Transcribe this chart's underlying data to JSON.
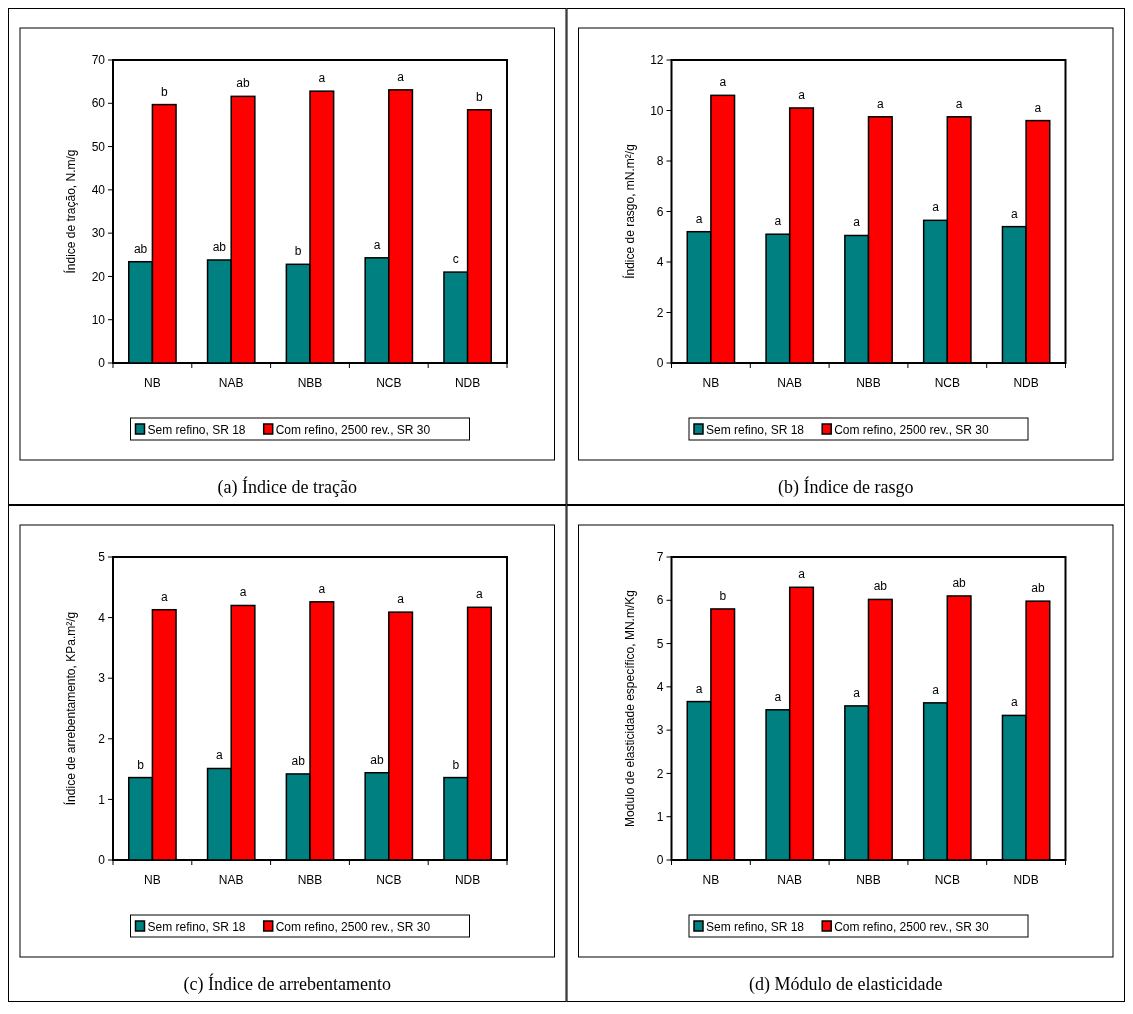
{
  "chart_data": [
    {
      "type": "bar",
      "title": "(a) Índice de tração",
      "ylabel": "Índice de tração, N.m/g",
      "categories": [
        "NB",
        "NAB",
        "NBB",
        "NCB",
        "NDB"
      ],
      "ylim": [
        0,
        70
      ],
      "yticks": [
        0,
        10,
        20,
        30,
        40,
        50,
        60,
        70
      ],
      "grid": false,
      "legend": "bottom",
      "series": [
        {
          "name": "Sem refino, SR 18",
          "color": "#008080",
          "values": [
            23.4,
            23.8,
            22.8,
            24.3,
            21.0
          ],
          "value_labels": [
            "ab",
            "ab",
            "b",
            "a",
            "c"
          ]
        },
        {
          "name": "Com refino, 2500 rev., SR 30",
          "color": "#ff0000",
          "values": [
            59.7,
            61.6,
            62.8,
            63.1,
            58.5
          ],
          "value_labels": [
            "b",
            "ab",
            "a",
            "a",
            "b"
          ]
        }
      ]
    },
    {
      "type": "bar",
      "title": "(b) Índice de rasgo",
      "ylabel": "Índice de rasgo, mN.m²/g",
      "categories": [
        "NB",
        "NAB",
        "NBB",
        "NCB",
        "NDB"
      ],
      "ylim": [
        0,
        12
      ],
      "yticks": [
        0,
        2,
        4,
        6,
        8,
        10,
        12
      ],
      "grid": false,
      "legend": "bottom",
      "series": [
        {
          "name": "Sem refino, SR 18",
          "color": "#008080",
          "values": [
            5.2,
            5.1,
            5.05,
            5.65,
            5.4
          ],
          "value_labels": [
            "a",
            "a",
            "a",
            "a",
            "a"
          ]
        },
        {
          "name": "Com refino, 2500 rev., SR 30",
          "color": "#ff0000",
          "values": [
            10.6,
            10.1,
            9.75,
            9.75,
            9.6
          ],
          "value_labels": [
            "a",
            "a",
            "a",
            "a",
            "a"
          ]
        }
      ]
    },
    {
      "type": "bar",
      "title": "(c) Índice de arrebentamento",
      "ylabel": "Índice de arrebentamento, KPa.m²/g",
      "categories": [
        "NB",
        "NAB",
        "NBB",
        "NCB",
        "NDB"
      ],
      "ylim": [
        0,
        5
      ],
      "yticks": [
        0,
        1,
        2,
        3,
        4,
        5
      ],
      "grid": false,
      "legend": "bottom",
      "series": [
        {
          "name": "Sem refino, SR 18",
          "color": "#008080",
          "values": [
            1.36,
            1.51,
            1.42,
            1.44,
            1.36
          ],
          "value_labels": [
            "b",
            "a",
            "ab",
            "ab",
            "b"
          ]
        },
        {
          "name": "Com refino, 2500 rev., SR 30",
          "color": "#ff0000",
          "values": [
            4.13,
            4.2,
            4.26,
            4.09,
            4.17
          ],
          "value_labels": [
            "a",
            "a",
            "a",
            "a",
            "a"
          ]
        }
      ]
    },
    {
      "type": "bar",
      "title": "(d) Módulo de elasticidade",
      "ylabel": "Modulo de elasticidade específico, MN.m/Kg",
      "categories": [
        "NB",
        "NAB",
        "NBB",
        "NCB",
        "NDB"
      ],
      "ylim": [
        0,
        7
      ],
      "yticks": [
        0,
        1,
        2,
        3,
        4,
        5,
        6,
        7
      ],
      "grid": false,
      "legend": "bottom",
      "series": [
        {
          "name": "Sem refino, SR 18",
          "color": "#008080",
          "values": [
            3.66,
            3.47,
            3.56,
            3.63,
            3.34
          ],
          "value_labels": [
            "a",
            "a",
            "a",
            "a",
            "a"
          ]
        },
        {
          "name": "Com refino, 2500 rev., SR 30",
          "color": "#ff0000",
          "values": [
            5.8,
            6.3,
            6.02,
            6.1,
            5.98
          ],
          "value_labels": [
            "b",
            "a",
            "ab",
            "ab",
            "ab"
          ]
        }
      ]
    }
  ]
}
